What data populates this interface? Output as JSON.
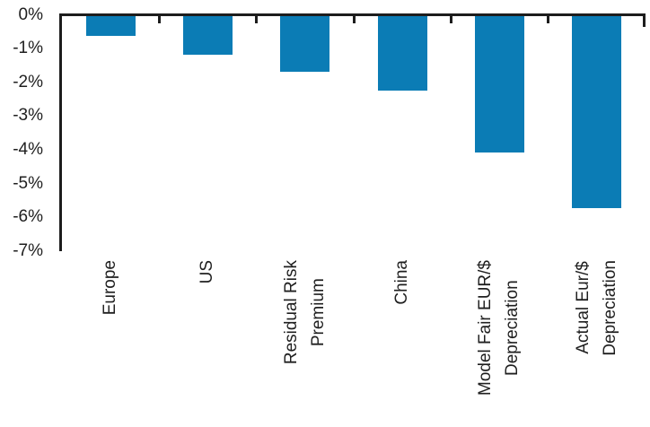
{
  "chart_data": {
    "type": "bar",
    "title": "",
    "xlabel": "",
    "ylabel": "",
    "categories": [
      "Europe",
      "US",
      "Residual Risk\nPremium",
      "China",
      "Model Fair EUR/$\nDepreciation",
      "Actual Eur/$\nDepreciation"
    ],
    "values": [
      -0.65,
      -1.2,
      -1.7,
      -2.25,
      -4.1,
      -5.75
    ],
    "value_unit": "%",
    "ylim": [
      -7,
      0
    ],
    "ytick_labels": [
      "0%",
      "-1%",
      "-2%",
      "-3%",
      "-4%",
      "-5%",
      "-6%",
      "-7%"
    ],
    "grid": false,
    "legend": "none",
    "bar_color": "#0b7cb5",
    "axis_color": "#1d1d1d",
    "text_color": "#1f1f1f",
    "background": "#ffffff"
  }
}
